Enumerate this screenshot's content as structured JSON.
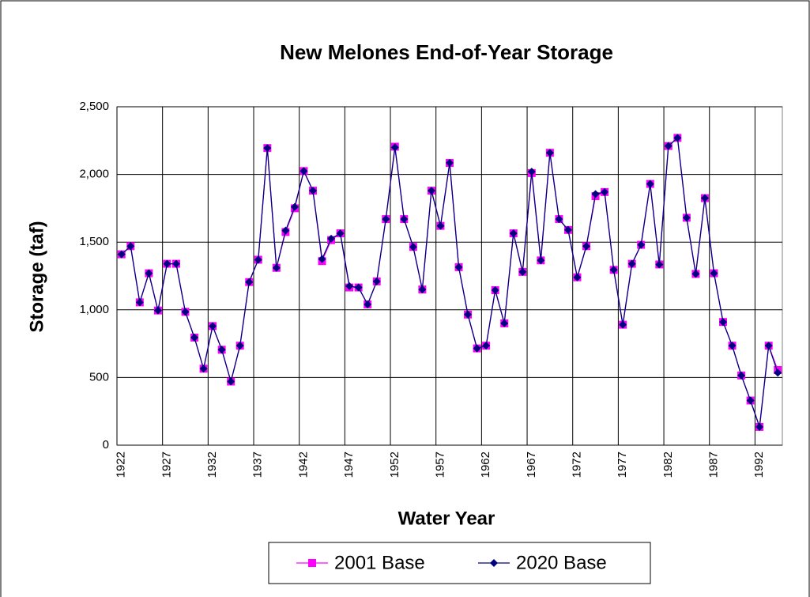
{
  "chart_data": {
    "type": "line",
    "title": "New Melones End-of-Year Storage",
    "x_label": "Water Year",
    "y_label": "Storage (taf)",
    "categories": [
      1922,
      null,
      null,
      null,
      null,
      1927,
      null,
      null,
      null,
      null,
      1932,
      null,
      null,
      null,
      null,
      1937,
      null,
      null,
      null,
      null,
      1942,
      null,
      null,
      null,
      null,
      1947,
      null,
      null,
      null,
      null,
      1952,
      null,
      null,
      null,
      null,
      1957,
      null,
      null,
      null,
      null,
      1962,
      null,
      null,
      null,
      null,
      1967,
      null,
      null,
      null,
      null,
      1972,
      null,
      null,
      null,
      null,
      1977,
      null,
      null,
      null,
      null,
      1982,
      null,
      null,
      null,
      null,
      1987,
      null,
      null,
      null,
      null,
      1992,
      null,
      null
    ],
    "series": [
      {
        "name": "2001 Base",
        "color": "#ff00ff",
        "marker": "square",
        "values": [
          1410,
          1470,
          1055,
          1270,
          995,
          1340,
          1340,
          985,
          795,
          565,
          880,
          705,
          470,
          735,
          1205,
          1370,
          2195,
          1310,
          1575,
          1750,
          2025,
          1880,
          1360,
          1515,
          1565,
          1165,
          1165,
          1040,
          1210,
          1670,
          2205,
          1670,
          1465,
          1150,
          1880,
          1620,
          2085,
          1315,
          965,
          715,
          735,
          1145,
          900,
          1565,
          1280,
          2010,
          1365,
          2160,
          1670,
          1590,
          1240,
          1470,
          1840,
          1870,
          1295,
          890,
          1340,
          1480,
          1930,
          1335,
          2210,
          2270,
          1680,
          1265,
          1825,
          1270,
          910,
          735,
          515,
          330,
          135,
          735,
          555
        ]
      },
      {
        "name": "2020 Base",
        "color": "#000080",
        "marker": "diamond",
        "values": [
          1410,
          1470,
          1055,
          1270,
          995,
          1340,
          1340,
          985,
          795,
          565,
          880,
          705,
          470,
          735,
          1205,
          1370,
          2195,
          1310,
          1585,
          1760,
          2025,
          1880,
          1375,
          1525,
          1565,
          1175,
          1165,
          1040,
          1210,
          1670,
          2200,
          1670,
          1465,
          1150,
          1880,
          1620,
          2085,
          1315,
          965,
          715,
          735,
          1145,
          900,
          1565,
          1280,
          2020,
          1365,
          2160,
          1670,
          1590,
          1240,
          1470,
          1855,
          1870,
          1295,
          890,
          1340,
          1480,
          1930,
          1335,
          2210,
          2270,
          1680,
          1265,
          1825,
          1270,
          910,
          735,
          515,
          330,
          135,
          735,
          535
        ]
      }
    ],
    "ylim": [
      0,
      2500
    ],
    "yticks": [
      0,
      500,
      {
        "value": 1000,
        "label": "1,000"
      },
      {
        "value": 1500,
        "label": "1,500"
      },
      {
        "value": 2000,
        "label": "2,000"
      },
      {
        "value": 2500,
        "label": "2,500"
      }
    ],
    "grid": true,
    "legend": "bottom"
  }
}
